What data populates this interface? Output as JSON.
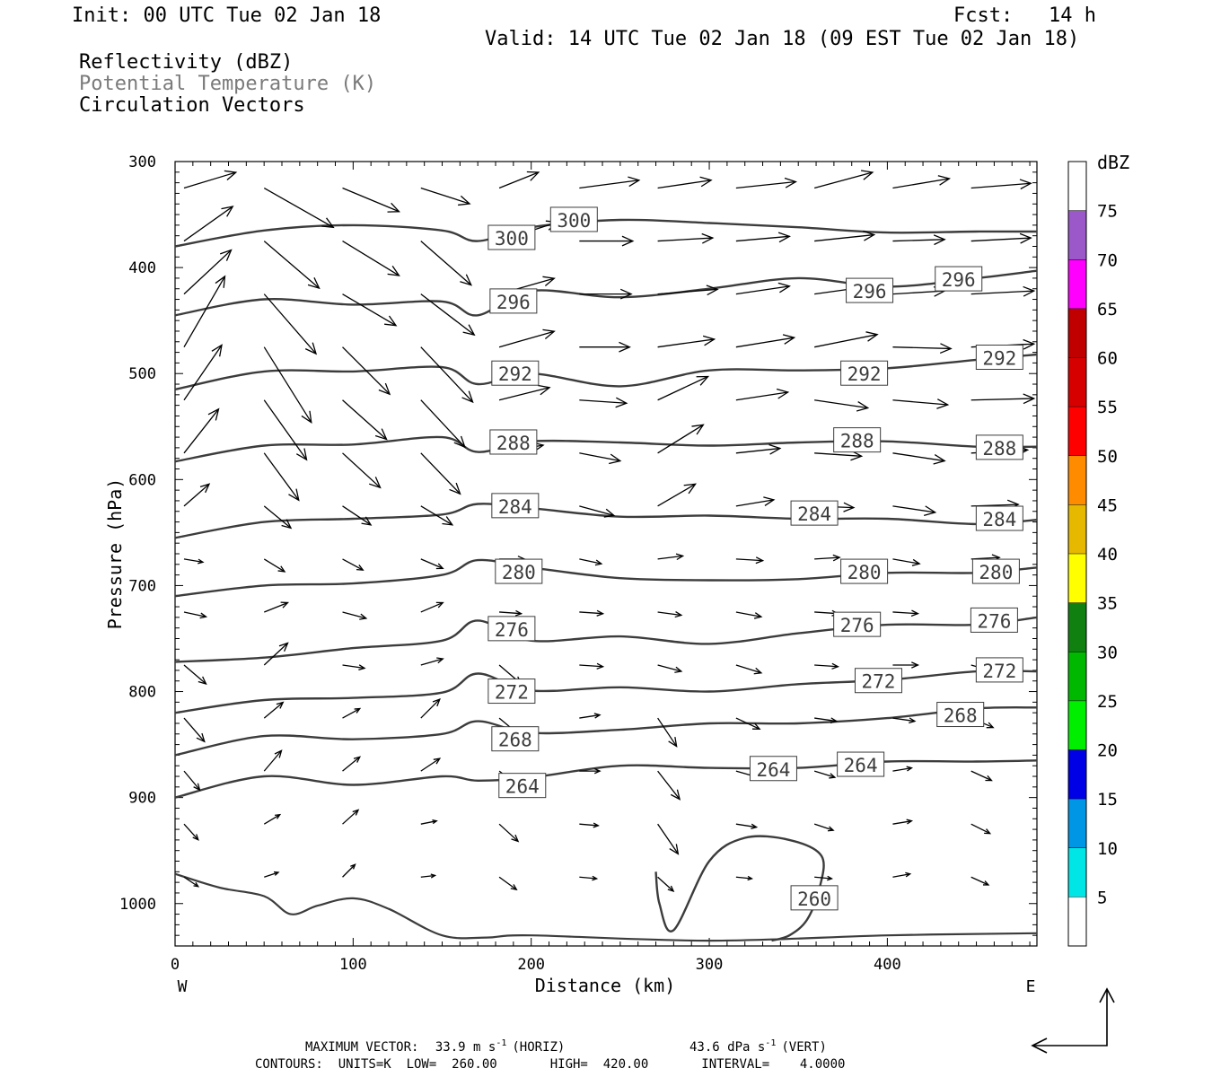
{
  "header": {
    "init": "Init: 00 UTC Tue 02 Jan 18",
    "fcst": "Fcst:   14 h",
    "valid": "Valid: 14 UTC Tue 02 Jan 18 (09 EST Tue 02 Jan 18)",
    "fields": [
      "Reflectivity (dBZ)",
      "Potential Temperature (K)",
      "Circulation Vectors"
    ]
  },
  "footer": {
    "max_vector_label": "MAXIMUM VECTOR:",
    "max_vector_horiz_value": "33.9 m s",
    "max_vector_horiz_sup": "-1",
    "max_vector_horiz_unit": "(HORIZ)",
    "max_vector_vert_value": "43.6 dPa s",
    "max_vector_vert_sup": "-1",
    "max_vector_vert_unit": "(VERT)",
    "contours": "CONTOURS:  UNITS=K  LOW=  260.00       HIGH=  420.00       INTERVAL=    4.0000"
  },
  "chart_data": {
    "type": "line",
    "xlabel": "Distance (km)",
    "ylabel": "Pressure (hPa)",
    "xlim": [
      0,
      484
    ],
    "ylim": [
      1040,
      300
    ],
    "x_ticks": [
      0,
      100,
      200,
      300,
      400
    ],
    "y_ticks": [
      300,
      400,
      500,
      600,
      700,
      800,
      900,
      1000
    ],
    "x_end_labels": {
      "left": "W",
      "right": "E"
    },
    "contour_colors": {
      "theta": "#3c3c3c",
      "vectors": "#000000"
    },
    "theta_x": [
      0,
      50,
      100,
      150,
      170,
      200,
      250,
      300,
      350,
      400,
      450,
      484
    ],
    "theta_contours": [
      {
        "level": 300,
        "p": [
          380,
          365,
          360,
          365,
          375,
          362,
          355,
          358,
          362,
          367,
          366,
          366
        ]
      },
      {
        "level": 296,
        "p": [
          445,
          430,
          435,
          432,
          445,
          422,
          428,
          420,
          410,
          418,
          410,
          403
        ]
      },
      {
        "level": 292,
        "p": [
          515,
          498,
          498,
          494,
          510,
          500,
          512,
          497,
          497,
          495,
          487,
          482
        ]
      },
      {
        "level": 288,
        "p": [
          583,
          568,
          567,
          560,
          574,
          564,
          565,
          568,
          565,
          564,
          569,
          569
        ]
      },
      {
        "level": 284,
        "p": [
          655,
          640,
          637,
          633,
          623,
          627,
          635,
          634,
          637,
          637,
          642,
          638
        ]
      },
      {
        "level": 280,
        "p": [
          710,
          700,
          698,
          690,
          676,
          683,
          693,
          695,
          694,
          688,
          688,
          683
        ]
      },
      {
        "level": 276,
        "p": [
          772,
          768,
          759,
          752,
          733,
          752,
          748,
          755,
          745,
          737,
          737,
          730
        ]
      },
      {
        "level": 272,
        "p": [
          820,
          808,
          806,
          801,
          783,
          799,
          796,
          800,
          793,
          789,
          781,
          781
        ]
      },
      {
        "level": 268,
        "p": [
          860,
          842,
          845,
          840,
          828,
          839,
          836,
          830,
          830,
          825,
          816,
          815
        ]
      },
      {
        "level": 264,
        "p": [
          900,
          880,
          888,
          880,
          884,
          881,
          870,
          872,
          872,
          866,
          866,
          865
        ]
      }
    ],
    "theta_level_260": {
      "level": 260,
      "x": [
        270,
        272,
        280,
        300,
        320,
        345,
        363,
        362,
        355,
        345,
        335
      ],
      "p": [
        970,
        1000,
        1025,
        960,
        938,
        940,
        955,
        985,
        1015,
        1030,
        1035
      ]
    },
    "surface_line": {
      "x": [
        0,
        25,
        50,
        65,
        80,
        100,
        120,
        150,
        175,
        200,
        300,
        400,
        484
      ],
      "p": [
        972,
        985,
        993,
        1010,
        1002,
        995,
        1005,
        1030,
        1032,
        1030,
        1035,
        1030,
        1028
      ]
    },
    "contour_labels": [
      {
        "value": 300,
        "x": 189,
        "p": 372
      },
      {
        "value": 300,
        "x": 224,
        "p": 355
      },
      {
        "value": 296,
        "x": 190,
        "p": 432
      },
      {
        "value": 296,
        "x": 390,
        "p": 422
      },
      {
        "value": 296,
        "x": 440,
        "p": 411
      },
      {
        "value": 292,
        "x": 191,
        "p": 500
      },
      {
        "value": 292,
        "x": 387,
        "p": 500
      },
      {
        "value": 292,
        "x": 463,
        "p": 485
      },
      {
        "value": 288,
        "x": 190,
        "p": 565
      },
      {
        "value": 288,
        "x": 383,
        "p": 563
      },
      {
        "value": 288,
        "x": 463,
        "p": 570
      },
      {
        "value": 284,
        "x": 191,
        "p": 625
      },
      {
        "value": 284,
        "x": 359,
        "p": 632
      },
      {
        "value": 284,
        "x": 463,
        "p": 637
      },
      {
        "value": 280,
        "x": 193,
        "p": 687
      },
      {
        "value": 280,
        "x": 387,
        "p": 687
      },
      {
        "value": 280,
        "x": 461,
        "p": 687
      },
      {
        "value": 276,
        "x": 189,
        "p": 741
      },
      {
        "value": 276,
        "x": 383,
        "p": 737
      },
      {
        "value": 276,
        "x": 460,
        "p": 733
      },
      {
        "value": 272,
        "x": 189,
        "p": 800
      },
      {
        "value": 272,
        "x": 395,
        "p": 790
      },
      {
        "value": 272,
        "x": 463,
        "p": 780
      },
      {
        "value": 268,
        "x": 191,
        "p": 845
      },
      {
        "value": 268,
        "x": 441,
        "p": 822
      },
      {
        "value": 264,
        "x": 195,
        "p": 889
      },
      {
        "value": 264,
        "x": 336,
        "p": 873
      },
      {
        "value": 264,
        "x": 385,
        "p": 869
      },
      {
        "value": 260,
        "x": 359,
        "p": 995
      }
    ],
    "vectors_cols": [
      0,
      45,
      89,
      133,
      177,
      222,
      266,
      310,
      354,
      398,
      442
    ],
    "vectors_rows": [
      325,
      375,
      425,
      475,
      525,
      575,
      625,
      675,
      725,
      775,
      825,
      875,
      925,
      975
    ],
    "vectors": [
      [
        [
          33,
          -10
        ],
        [
          44,
          25
        ],
        [
          36,
          15
        ],
        [
          31,
          10
        ],
        [
          25,
          -10
        ],
        [
          38,
          -5
        ],
        [
          34,
          -5
        ],
        [
          38,
          -4
        ],
        [
          37,
          -10
        ],
        [
          36,
          -6
        ],
        [
          38,
          -3
        ]
      ],
      [
        [
          31,
          -22
        ],
        [
          35,
          30
        ],
        [
          36,
          22
        ],
        [
          32,
          28
        ],
        [
          37,
          -12
        ],
        [
          34,
          0
        ],
        [
          35,
          -2
        ],
        [
          34,
          -3
        ],
        [
          38,
          -4
        ],
        [
          33,
          -1
        ],
        [
          38,
          -2
        ]
      ],
      [
        [
          30,
          -28
        ],
        [
          33,
          38
        ],
        [
          34,
          20
        ],
        [
          34,
          26
        ],
        [
          35,
          -10
        ],
        [
          33,
          0
        ],
        [
          38,
          -3
        ],
        [
          34,
          -5
        ],
        [
          36,
          -5
        ],
        [
          33,
          -2
        ],
        [
          40,
          -2
        ]
      ],
      [
        [
          26,
          -45
        ],
        [
          30,
          48
        ],
        [
          30,
          30
        ],
        [
          33,
          35
        ],
        [
          35,
          -10
        ],
        [
          32,
          0
        ],
        [
          36,
          -5
        ],
        [
          37,
          -6
        ],
        [
          40,
          -8
        ],
        [
          37,
          1
        ],
        [
          40,
          -2
        ]
      ],
      [
        [
          24,
          -35
        ],
        [
          27,
          38
        ],
        [
          28,
          25
        ],
        [
          28,
          30
        ],
        [
          32,
          -8
        ],
        [
          30,
          2
        ],
        [
          32,
          -15
        ],
        [
          33,
          -5
        ],
        [
          34,
          5
        ],
        [
          35,
          3
        ],
        [
          40,
          -1
        ]
      ],
      [
        [
          22,
          -28
        ],
        [
          22,
          30
        ],
        [
          24,
          22
        ],
        [
          25,
          26
        ],
        [
          28,
          -5
        ],
        [
          26,
          5
        ],
        [
          29,
          -18
        ],
        [
          28,
          -3
        ],
        [
          30,
          2
        ],
        [
          33,
          5
        ],
        [
          36,
          -2
        ]
      ],
      [
        [
          16,
          -14
        ],
        [
          17,
          14
        ],
        [
          18,
          12
        ],
        [
          20,
          12
        ],
        [
          22,
          -3
        ],
        [
          22,
          6
        ],
        [
          24,
          -14
        ],
        [
          24,
          -4
        ],
        [
          25,
          1
        ],
        [
          27,
          4
        ],
        [
          30,
          -1
        ]
      ],
      [
        [
          12,
          2
        ],
        [
          13,
          8
        ],
        [
          13,
          7
        ],
        [
          14,
          6
        ],
        [
          16,
          0
        ],
        [
          14,
          3
        ],
        [
          16,
          -2
        ],
        [
          17,
          1
        ],
        [
          16,
          -1
        ],
        [
          17,
          3
        ],
        [
          18,
          -1
        ]
      ],
      [
        [
          14,
          3
        ],
        [
          15,
          -6
        ],
        [
          15,
          4
        ],
        [
          14,
          -6
        ],
        [
          14,
          1
        ],
        [
          15,
          1
        ],
        [
          15,
          2
        ],
        [
          16,
          3
        ],
        [
          15,
          1
        ],
        [
          16,
          1
        ],
        [
          15,
          1
        ]
      ],
      [
        [
          14,
          12
        ],
        [
          15,
          -14
        ],
        [
          14,
          2
        ],
        [
          14,
          -4
        ],
        [
          14,
          12
        ],
        [
          15,
          1
        ],
        [
          15,
          4
        ],
        [
          16,
          5
        ],
        [
          15,
          1
        ],
        [
          16,
          0
        ],
        [
          14,
          4
        ]
      ],
      [
        [
          13,
          15
        ],
        [
          12,
          -10
        ],
        [
          11,
          -6
        ],
        [
          12,
          -12
        ],
        [
          12,
          10
        ],
        [
          13,
          -2
        ],
        [
          12,
          18
        ],
        [
          15,
          7
        ],
        [
          14,
          2
        ],
        [
          14,
          2
        ],
        [
          14,
          6
        ]
      ],
      [
        [
          10,
          12
        ],
        [
          11,
          -13
        ],
        [
          11,
          -9
        ],
        [
          12,
          -8
        ],
        [
          13,
          10
        ],
        [
          13,
          0
        ],
        [
          14,
          18
        ],
        [
          14,
          4
        ],
        [
          13,
          4
        ],
        [
          12,
          -2
        ],
        [
          13,
          6
        ]
      ],
      [
        [
          9,
          10
        ],
        [
          10,
          -6
        ],
        [
          10,
          -9
        ],
        [
          10,
          -2
        ],
        [
          12,
          11
        ],
        [
          12,
          1
        ],
        [
          13,
          19
        ],
        [
          13,
          2
        ],
        [
          12,
          4
        ],
        [
          12,
          -2
        ],
        [
          12,
          6
        ]
      ],
      [
        [
          9,
          6
        ],
        [
          9,
          -3
        ],
        [
          8,
          -8
        ],
        [
          9,
          -1
        ],
        [
          11,
          8
        ],
        [
          11,
          1
        ],
        [
          10,
          9
        ],
        [
          10,
          1
        ],
        [
          11,
          1
        ],
        [
          11,
          -2
        ],
        [
          11,
          5
        ]
      ]
    ],
    "legend": {
      "title": "dBZ",
      "ticks": [
        "75",
        "70",
        "65",
        "60",
        "55",
        "50",
        "45",
        "40",
        "35",
        "30",
        "25",
        "20",
        "15",
        "10",
        "5"
      ],
      "bins": [
        "#ffffff",
        "#9a58c8",
        "#ff00ff",
        "#c00000",
        "#d70000",
        "#ff0000",
        "#ff8c00",
        "#e6b800",
        "#ffff00",
        "#108010",
        "#00b800",
        "#00ee00",
        "#0000e6",
        "#0096e6",
        "#00e6e6",
        "#ffffff"
      ]
    }
  }
}
